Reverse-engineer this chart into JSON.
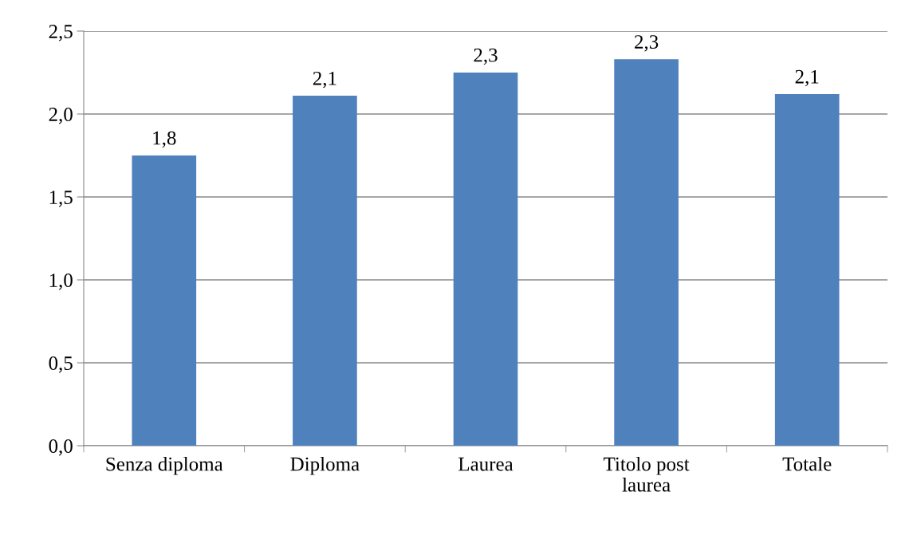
{
  "chart_data": {
    "type": "bar",
    "categories": [
      "Senza diploma",
      "Diploma",
      "Laurea",
      "Titolo post\nlaurea",
      "Totale"
    ],
    "values": [
      1.75,
      2.11,
      2.25,
      2.33,
      2.12
    ],
    "value_labels": [
      "1,8",
      "2,1",
      "2,3",
      "2,3",
      "2,1"
    ],
    "color": "#4f81bd",
    "ylim": [
      0,
      2.5
    ],
    "yticks": [
      {
        "value": 0,
        "label": "0,0"
      },
      {
        "value": 0.5,
        "label": "0,5"
      },
      {
        "value": 1,
        "label": "1,0"
      },
      {
        "value": 1.5,
        "label": "1,5"
      },
      {
        "value": 2,
        "label": "2,0"
      },
      {
        "value": 2.5,
        "label": "2,5"
      }
    ],
    "grid": "y",
    "legend": false
  }
}
